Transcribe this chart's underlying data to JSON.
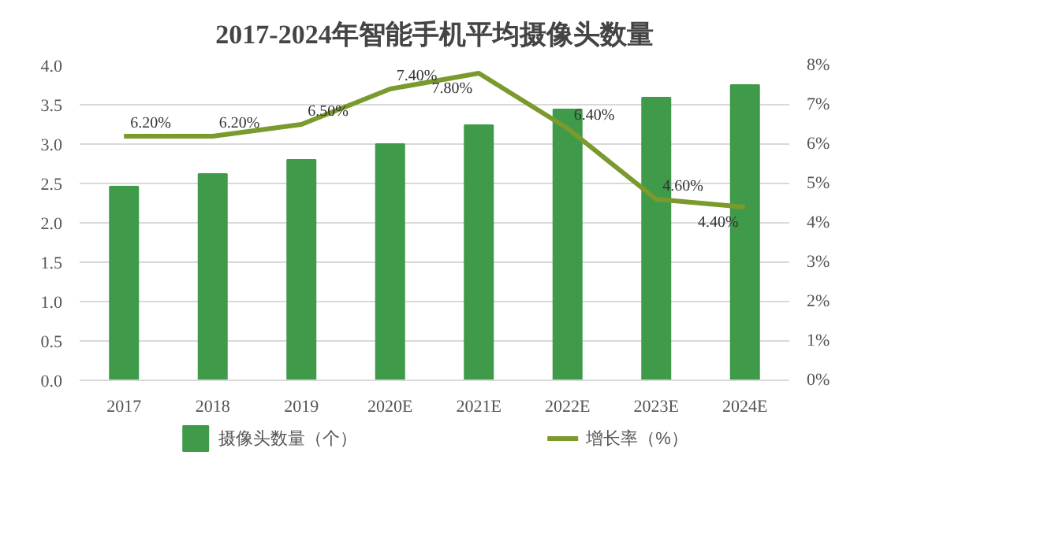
{
  "chart_data": {
    "type": "bar",
    "title": "2017-2024年智能手机平均摄像头数量",
    "categories": [
      "2017",
      "2018",
      "2019",
      "2020E",
      "2021E",
      "2022E",
      "2023E",
      "2024E"
    ],
    "series": [
      {
        "name": "摄像头数量（个）",
        "color": "#3f9a49",
        "values": [
          2.46,
          2.62,
          2.8,
          3.0,
          3.24,
          3.44,
          3.59,
          3.75
        ]
      },
      {
        "name": "增长率（%）",
        "type": "line",
        "axis": "y2",
        "color": "#7a9a2e",
        "values": [
          6.2,
          6.2,
          6.5,
          7.4,
          7.8,
          6.4,
          4.6,
          4.4
        ],
        "value_labels": [
          "6.20%",
          "6.20%",
          "6.50%",
          "7.40%",
          "7.80%",
          "6.40%",
          "4.60%",
          "4.40%"
        ]
      }
    ],
    "ylim": [
      0,
      4
    ],
    "yticks": [
      {
        "value": 0,
        "label": "0.0"
      },
      {
        "value": 0.5,
        "label": "0.5"
      },
      {
        "value": 1,
        "label": "1.0"
      },
      {
        "value": 1.5,
        "label": "1.5"
      },
      {
        "value": 2,
        "label": "2.0"
      },
      {
        "value": 2.5,
        "label": "2.5"
      },
      {
        "value": 3,
        "label": "3.0"
      },
      {
        "value": 3.5,
        "label": "3.5"
      },
      {
        "value": 4,
        "label": "4.0"
      }
    ],
    "y2lim": [
      0,
      8
    ],
    "y2ticks": [
      {
        "value": 0,
        "label": "0%"
      },
      {
        "value": 1,
        "label": "1%"
      },
      {
        "value": 2,
        "label": "2%"
      },
      {
        "value": 3,
        "label": "3%"
      },
      {
        "value": 4,
        "label": "4%"
      },
      {
        "value": 5,
        "label": "5%"
      },
      {
        "value": 6,
        "label": "6%"
      },
      {
        "value": 7,
        "label": "7%"
      },
      {
        "value": 8,
        "label": "8%"
      }
    ],
    "grid": "y",
    "legend": "bottom"
  }
}
